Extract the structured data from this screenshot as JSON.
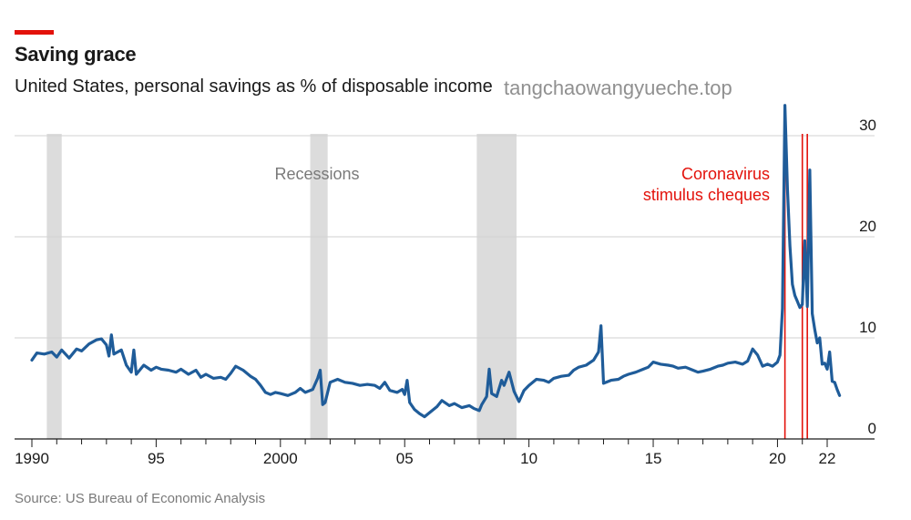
{
  "header": {
    "title": "Saving grace",
    "subtitle": "United States, personal savings as % of disposable income"
  },
  "watermark": "tangchaowangyueche.top",
  "footer": {
    "source": "Source: US Bureau of Economic Analysis"
  },
  "chart_data": {
    "type": "line",
    "title": "Saving grace",
    "subtitle": "United States, personal savings as % of disposable income",
    "xlabel": "",
    "ylabel": "",
    "xlim": [
      1990,
      2023
    ],
    "ylim": [
      0,
      33
    ],
    "y_ticks": [
      0,
      10,
      20,
      30
    ],
    "y_tick_labels": [
      "0",
      "10",
      "20",
      "30"
    ],
    "y_axis_side": "right",
    "x_ticks": [
      1990,
      1995,
      2000,
      2005,
      2010,
      2015,
      2020,
      2022
    ],
    "x_tick_labels": [
      "1990",
      "95",
      "2000",
      "05",
      "10",
      "15",
      "20",
      "22"
    ],
    "grid": "horizontal",
    "line_color": "#1f5c99",
    "recession_color": "#dcdcdc",
    "stimulus_color": "#e3120b",
    "annotations": {
      "recessions_label": "Recessions",
      "stimulus_label_line1": "Coronavirus",
      "stimulus_label_line2": "stimulus cheques"
    },
    "recessions": [
      [
        1990.6,
        1991.2
      ],
      [
        2001.2,
        2001.9
      ],
      [
        2007.9,
        2009.5
      ]
    ],
    "stimulus_cheques": [
      2020.3,
      2021.0,
      2021.2
    ],
    "series": [
      {
        "values": [
          [
            1990.0,
            7.8
          ],
          [
            1990.2,
            8.5
          ],
          [
            1990.5,
            8.4
          ],
          [
            1990.8,
            8.6
          ],
          [
            1991.0,
            8.1
          ],
          [
            1991.2,
            8.8
          ],
          [
            1991.5,
            8.0
          ],
          [
            1991.8,
            8.9
          ],
          [
            1992.0,
            8.7
          ],
          [
            1992.3,
            9.4
          ],
          [
            1992.6,
            9.8
          ],
          [
            1992.8,
            9.9
          ],
          [
            1993.0,
            9.3
          ],
          [
            1993.1,
            8.2
          ],
          [
            1993.2,
            10.3
          ],
          [
            1993.3,
            8.4
          ],
          [
            1993.6,
            8.8
          ],
          [
            1993.8,
            7.3
          ],
          [
            1994.0,
            6.6
          ],
          [
            1994.1,
            8.8
          ],
          [
            1994.2,
            6.4
          ],
          [
            1994.5,
            7.3
          ],
          [
            1994.8,
            6.8
          ],
          [
            1995.0,
            7.1
          ],
          [
            1995.2,
            6.9
          ],
          [
            1995.5,
            6.8
          ],
          [
            1995.8,
            6.6
          ],
          [
            1996.0,
            6.9
          ],
          [
            1996.3,
            6.4
          ],
          [
            1996.6,
            6.8
          ],
          [
            1996.8,
            6.1
          ],
          [
            1997.0,
            6.4
          ],
          [
            1997.3,
            6.0
          ],
          [
            1997.6,
            6.1
          ],
          [
            1997.8,
            5.9
          ],
          [
            1998.0,
            6.5
          ],
          [
            1998.2,
            7.2
          ],
          [
            1998.5,
            6.8
          ],
          [
            1998.8,
            6.2
          ],
          [
            1999.0,
            5.9
          ],
          [
            1999.2,
            5.3
          ],
          [
            1999.4,
            4.6
          ],
          [
            1999.6,
            4.4
          ],
          [
            1999.8,
            4.6
          ],
          [
            2000.0,
            4.5
          ],
          [
            2000.3,
            4.3
          ],
          [
            2000.6,
            4.6
          ],
          [
            2000.8,
            5.0
          ],
          [
            2001.0,
            4.6
          ],
          [
            2001.3,
            4.9
          ],
          [
            2001.5,
            6.0
          ],
          [
            2001.6,
            6.8
          ],
          [
            2001.7,
            3.4
          ],
          [
            2001.8,
            3.6
          ],
          [
            2002.0,
            5.6
          ],
          [
            2002.3,
            5.9
          ],
          [
            2002.6,
            5.6
          ],
          [
            2002.9,
            5.5
          ],
          [
            2003.2,
            5.3
          ],
          [
            2003.5,
            5.4
          ],
          [
            2003.8,
            5.3
          ],
          [
            2004.0,
            5.0
          ],
          [
            2004.2,
            5.6
          ],
          [
            2004.4,
            4.8
          ],
          [
            2004.7,
            4.6
          ],
          [
            2004.9,
            4.9
          ],
          [
            2005.0,
            4.4
          ],
          [
            2005.1,
            5.8
          ],
          [
            2005.2,
            3.6
          ],
          [
            2005.4,
            2.9
          ],
          [
            2005.6,
            2.5
          ],
          [
            2005.8,
            2.2
          ],
          [
            2006.0,
            2.6
          ],
          [
            2006.3,
            3.2
          ],
          [
            2006.5,
            3.8
          ],
          [
            2006.8,
            3.3
          ],
          [
            2007.0,
            3.5
          ],
          [
            2007.3,
            3.1
          ],
          [
            2007.6,
            3.3
          ],
          [
            2007.8,
            3.0
          ],
          [
            2008.0,
            2.8
          ],
          [
            2008.1,
            3.4
          ],
          [
            2008.3,
            4.2
          ],
          [
            2008.4,
            6.9
          ],
          [
            2008.5,
            4.5
          ],
          [
            2008.7,
            4.2
          ],
          [
            2008.9,
            5.8
          ],
          [
            2009.0,
            5.3
          ],
          [
            2009.2,
            6.6
          ],
          [
            2009.4,
            4.7
          ],
          [
            2009.6,
            3.7
          ],
          [
            2009.8,
            4.8
          ],
          [
            2010.0,
            5.3
          ],
          [
            2010.3,
            5.9
          ],
          [
            2010.6,
            5.8
          ],
          [
            2010.8,
            5.6
          ],
          [
            2011.0,
            6.0
          ],
          [
            2011.3,
            6.2
          ],
          [
            2011.6,
            6.3
          ],
          [
            2011.8,
            6.8
          ],
          [
            2012.0,
            7.1
          ],
          [
            2012.3,
            7.3
          ],
          [
            2012.6,
            7.8
          ],
          [
            2012.8,
            8.6
          ],
          [
            2012.9,
            11.2
          ],
          [
            2013.0,
            5.5
          ],
          [
            2013.3,
            5.8
          ],
          [
            2013.6,
            5.9
          ],
          [
            2013.8,
            6.2
          ],
          [
            2014.0,
            6.4
          ],
          [
            2014.3,
            6.6
          ],
          [
            2014.6,
            6.9
          ],
          [
            2014.8,
            7.1
          ],
          [
            2015.0,
            7.6
          ],
          [
            2015.3,
            7.4
          ],
          [
            2015.6,
            7.3
          ],
          [
            2015.8,
            7.2
          ],
          [
            2016.0,
            7.0
          ],
          [
            2016.3,
            7.1
          ],
          [
            2016.6,
            6.8
          ],
          [
            2016.8,
            6.6
          ],
          [
            2017.0,
            6.7
          ],
          [
            2017.3,
            6.9
          ],
          [
            2017.6,
            7.2
          ],
          [
            2017.8,
            7.3
          ],
          [
            2018.0,
            7.5
          ],
          [
            2018.3,
            7.6
          ],
          [
            2018.6,
            7.4
          ],
          [
            2018.8,
            7.7
          ],
          [
            2019.0,
            8.9
          ],
          [
            2019.2,
            8.3
          ],
          [
            2019.4,
            7.2
          ],
          [
            2019.6,
            7.4
          ],
          [
            2019.8,
            7.2
          ],
          [
            2020.0,
            7.6
          ],
          [
            2020.1,
            8.3
          ],
          [
            2020.2,
            12.9
          ],
          [
            2020.3,
            33.0
          ],
          [
            2020.4,
            24.7
          ],
          [
            2020.5,
            19.1
          ],
          [
            2020.6,
            15.3
          ],
          [
            2020.7,
            14.2
          ],
          [
            2020.8,
            13.6
          ],
          [
            2020.9,
            13.0
          ],
          [
            2021.0,
            13.3
          ],
          [
            2021.1,
            19.6
          ],
          [
            2021.2,
            13.1
          ],
          [
            2021.3,
            26.6
          ],
          [
            2021.4,
            12.4
          ],
          [
            2021.5,
            10.8
          ],
          [
            2021.6,
            9.5
          ],
          [
            2021.7,
            10.0
          ],
          [
            2021.8,
            7.4
          ],
          [
            2021.9,
            7.5
          ],
          [
            2022.0,
            6.9
          ],
          [
            2022.1,
            8.6
          ],
          [
            2022.2,
            5.7
          ],
          [
            2022.3,
            5.6
          ],
          [
            2022.4,
            4.9
          ],
          [
            2022.5,
            4.3
          ]
        ]
      }
    ]
  }
}
